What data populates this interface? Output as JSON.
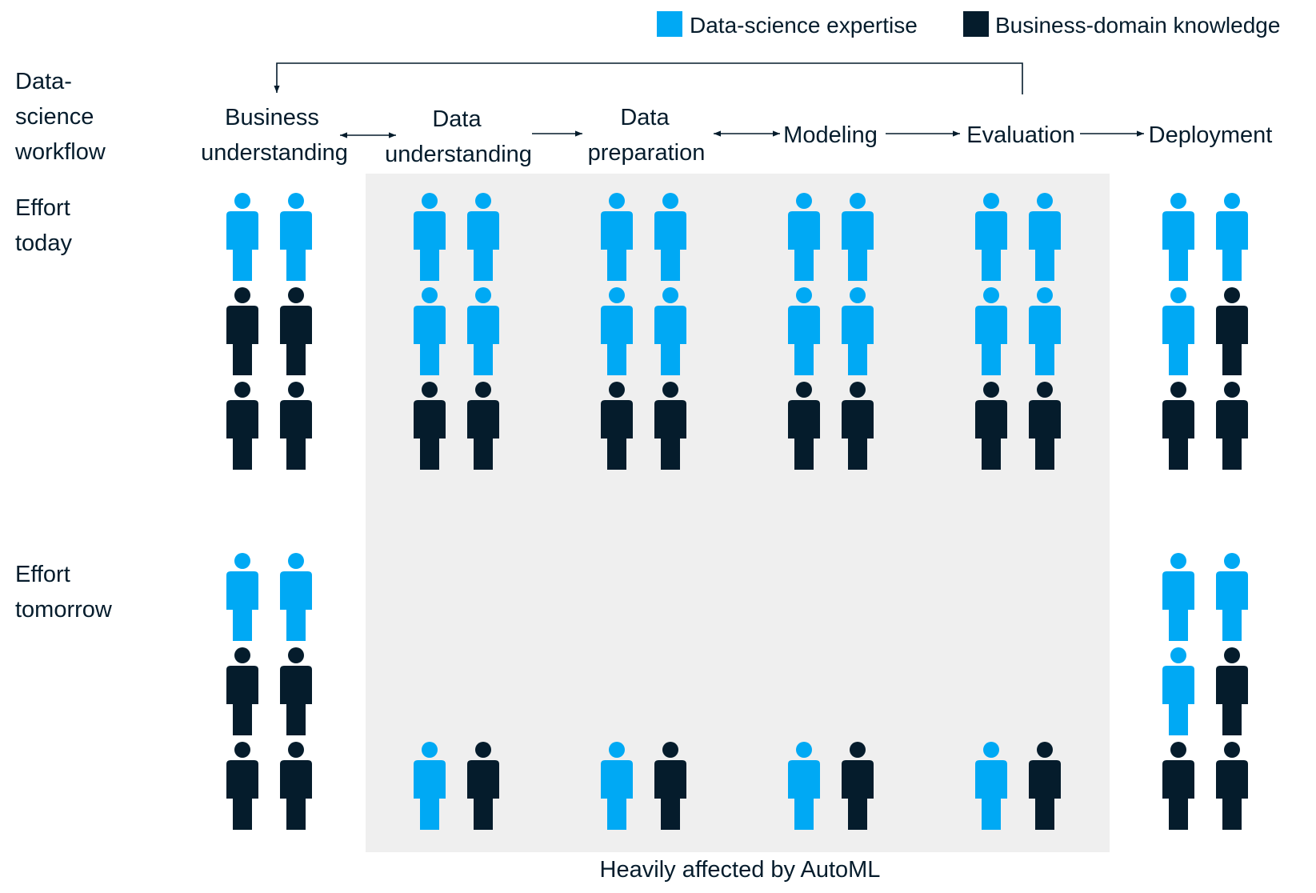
{
  "legend": [
    {
      "key": "ds",
      "label": "Data-science expertise",
      "color": "#00a9f4"
    },
    {
      "key": "bd",
      "label": "Business-domain knowledge",
      "color": "#051c2c"
    }
  ],
  "row_labels": {
    "workflow": [
      "Data-",
      "science",
      "workflow"
    ],
    "today": [
      "Effort",
      "today"
    ],
    "tomorrow": [
      "Effort",
      "tomorrow"
    ]
  },
  "stages": [
    {
      "lines": [
        "Business",
        "understanding"
      ]
    },
    {
      "lines": [
        "Data",
        "understanding"
      ]
    },
    {
      "lines": [
        "Data",
        "preparation"
      ]
    },
    {
      "lines": [
        "Modeling"
      ]
    },
    {
      "lines": [
        "Evaluation"
      ]
    },
    {
      "lines": [
        "Deployment"
      ]
    }
  ],
  "highlight_caption": "Heavily affected by AutoML",
  "effort_today": [
    [
      [
        "ds",
        "ds"
      ],
      [
        "bd",
        "bd"
      ],
      [
        "bd",
        "bd"
      ]
    ],
    [
      [
        "ds",
        "ds"
      ],
      [
        "ds",
        "ds"
      ],
      [
        "bd",
        "bd"
      ]
    ],
    [
      [
        "ds",
        "ds"
      ],
      [
        "ds",
        "ds"
      ],
      [
        "bd",
        "bd"
      ]
    ],
    [
      [
        "ds",
        "ds"
      ],
      [
        "ds",
        "ds"
      ],
      [
        "bd",
        "bd"
      ]
    ],
    [
      [
        "ds",
        "ds"
      ],
      [
        "ds",
        "ds"
      ],
      [
        "bd",
        "bd"
      ]
    ],
    [
      [
        "ds",
        "ds"
      ],
      [
        "ds",
        "bd"
      ],
      [
        "bd",
        "bd"
      ]
    ]
  ],
  "effort_tomorrow": [
    [
      [
        "ds",
        "ds"
      ],
      [
        "bd",
        "bd"
      ],
      [
        "bd",
        "bd"
      ]
    ],
    [
      [],
      [],
      [
        "ds",
        "bd"
      ]
    ],
    [
      [],
      [],
      [
        "ds",
        "bd"
      ]
    ],
    [
      [],
      [],
      [
        "ds",
        "bd"
      ]
    ],
    [
      [],
      [],
      [
        "ds",
        "bd"
      ]
    ],
    [
      [
        "ds",
        "ds"
      ],
      [
        "ds",
        "bd"
      ],
      [
        "bd",
        "bd"
      ]
    ]
  ],
  "colors": {
    "ds": "#00a9f4",
    "bd": "#051c2c",
    "highlight_bg": "#efefef",
    "line": "#051c2c"
  }
}
